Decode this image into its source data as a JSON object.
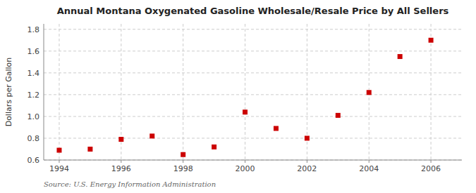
{
  "chart_data": {
    "type": "scatter",
    "title": "Annual Montana Oxygenated Gasoline Wholesale/Resale Price by All Sellers",
    "ylabel": "Dollars per Gallon",
    "source": "Source: U.S. Energy Information Administration",
    "x": [
      1994,
      1995,
      1996,
      1997,
      1998,
      1999,
      2000,
      2001,
      2002,
      2003,
      2004,
      2005,
      2006
    ],
    "values": [
      0.69,
      0.7,
      0.79,
      0.82,
      0.65,
      0.72,
      1.04,
      0.89,
      0.8,
      1.01,
      1.22,
      1.55,
      1.7
    ],
    "color": "#cc0000",
    "marker": "square",
    "xlim": [
      1993.5,
      2007.0
    ],
    "ylim": [
      0.6,
      1.85
    ],
    "xticks": [
      1994,
      1996,
      1998,
      2000,
      2002,
      2004,
      2006
    ],
    "yticks": [
      0.6,
      0.8,
      {
        "value": 1,
        "label": "1.0"
      },
      1.2,
      1.4,
      1.6,
      1.8
    ],
    "grid": true
  }
}
